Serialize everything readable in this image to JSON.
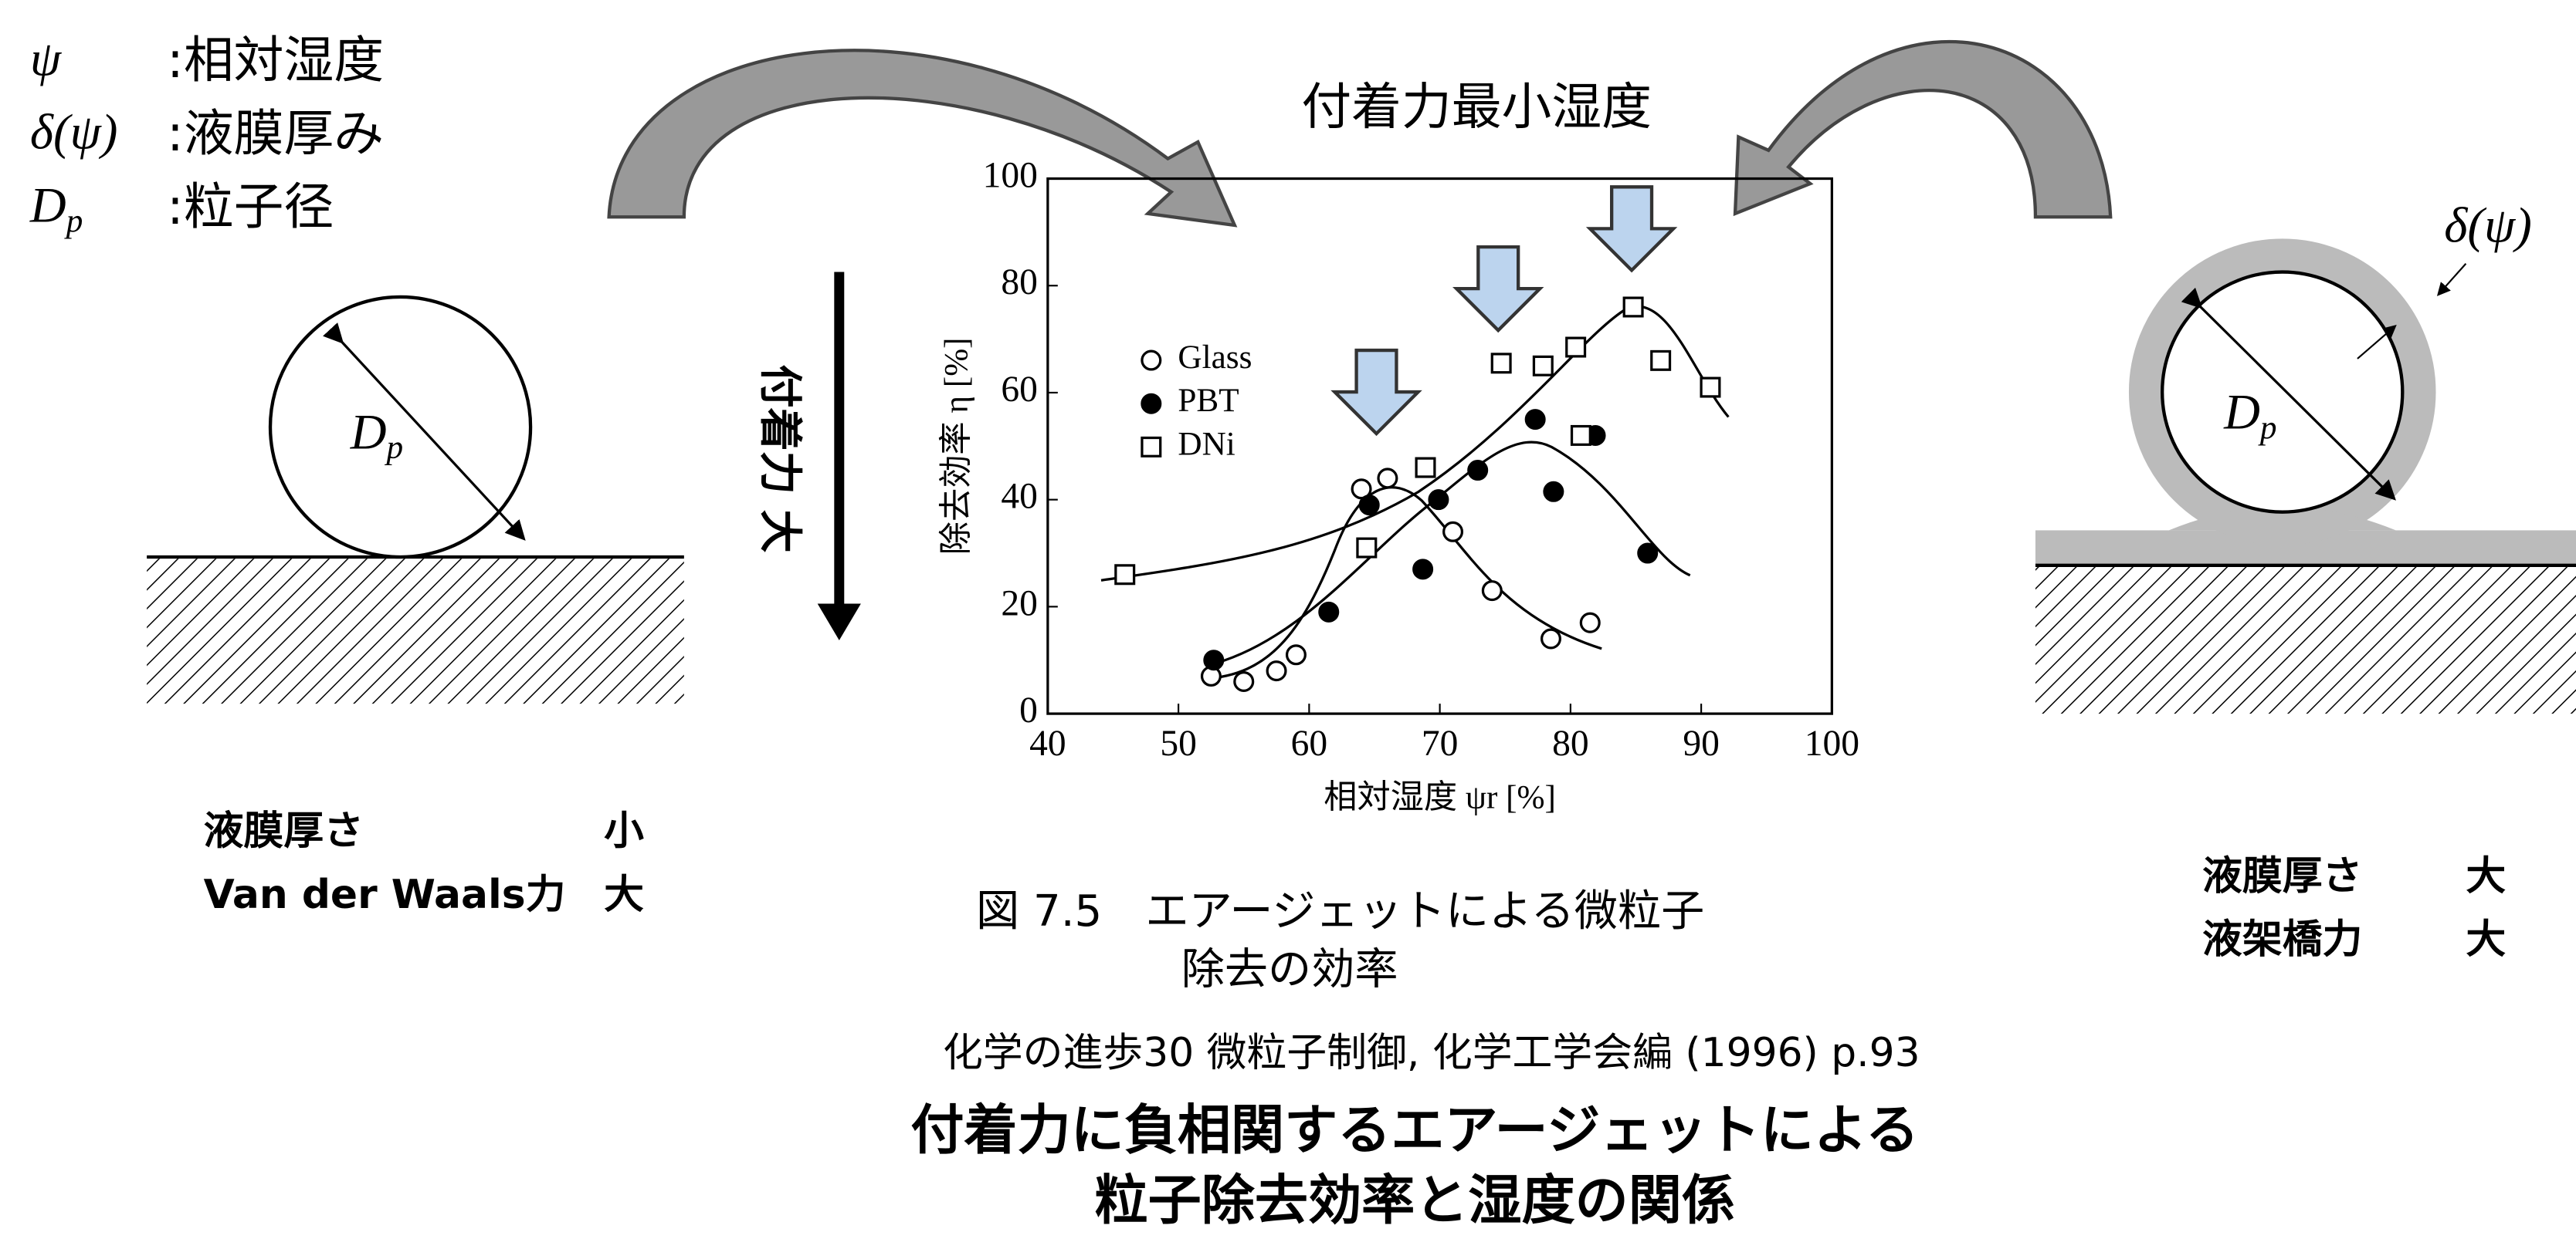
{
  "definitions": [
    {
      "symbol": "ψ",
      "text": ":相対湿度"
    },
    {
      "symbol": "δ(ψ)",
      "text": ":液膜厚み"
    },
    {
      "symbol": "D",
      "subscript": "p",
      "text": ":粒子径"
    }
  ],
  "callout": "付着力最小湿度",
  "force_axis": "付着力 大",
  "left": {
    "diameter": {
      "symbol": "D",
      "subscript": "p"
    },
    "rows": [
      [
        "液膜厚さ",
        "小"
      ],
      [
        "Van der Waals力",
        "大"
      ]
    ]
  },
  "right": {
    "film": "δ(ψ)",
    "diameter": {
      "symbol": "D",
      "subscript": "p"
    },
    "rows": [
      [
        "液膜厚さ",
        "大"
      ],
      [
        "液架橋力",
        "大"
      ]
    ]
  },
  "figure_caption": [
    "図 7.5　エアージェットによる微粒子",
    "除去の効率"
  ],
  "source": "化学の進歩30 微粒子制御, 化学工学会編 (1996) p.93",
  "headline": [
    "付着力に負相関するエアージェットによる",
    "粒子除去効率と湿度の関係"
  ],
  "chart_data": {
    "type": "scatter",
    "xlabel": "相対湿度 ψr [%]",
    "ylabel": "除去効率 η [%]",
    "xlim": [
      40,
      100
    ],
    "xticks": [
      40,
      50,
      60,
      70,
      80,
      90,
      100
    ],
    "ylim": [
      0,
      100
    ],
    "yticks": [
      0,
      20,
      40,
      60,
      80,
      100
    ],
    "series": [
      {
        "name": "Glass",
        "marker": "open-circle",
        "color": "#000",
        "x": [
          52.5,
          55,
          57.5,
          59,
          64,
          66,
          71,
          74,
          78.5,
          81.5
        ],
        "values": [
          7,
          6,
          8,
          11,
          42,
          44,
          34,
          23,
          14,
          17
        ]
      },
      {
        "name": "PBT",
        "marker": "filled-circle",
        "color": "#000",
        "x": [
          52.7,
          61.5,
          64.6,
          68.7,
          69.9,
          72.9,
          77.3,
          78.7,
          81.9,
          85.9
        ],
        "values": [
          10,
          19,
          39,
          27,
          40,
          45.5,
          55,
          41.5,
          52,
          30
        ]
      },
      {
        "name": "DNi",
        "marker": "open-square",
        "color": "#000",
        "x": [
          45.9,
          64.4,
          68.9,
          74.7,
          77.9,
          80.4,
          80.8,
          84.8,
          86.9,
          90.7
        ],
        "values": [
          26,
          31,
          46,
          65.5,
          65,
          68.5,
          52,
          76,
          66,
          61
        ]
      }
    ]
  }
}
